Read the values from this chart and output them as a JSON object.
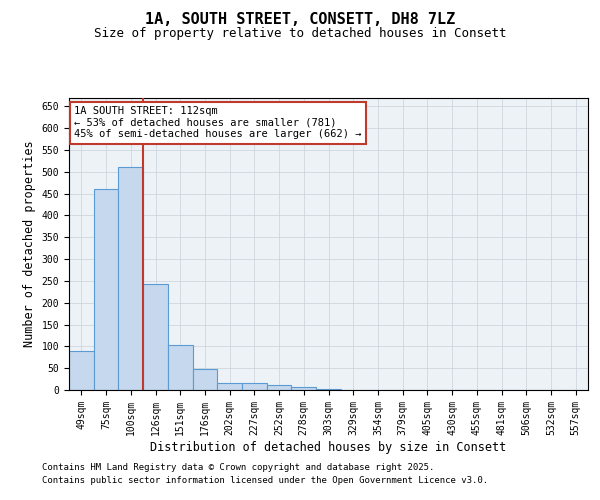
{
  "title_line1": "1A, SOUTH STREET, CONSETT, DH8 7LZ",
  "title_line2": "Size of property relative to detached houses in Consett",
  "xlabel": "Distribution of detached houses by size in Consett",
  "ylabel": "Number of detached properties",
  "categories": [
    "49sqm",
    "75sqm",
    "100sqm",
    "126sqm",
    "151sqm",
    "176sqm",
    "202sqm",
    "227sqm",
    "252sqm",
    "278sqm",
    "303sqm",
    "329sqm",
    "354sqm",
    "379sqm",
    "405sqm",
    "430sqm",
    "455sqm",
    "481sqm",
    "506sqm",
    "532sqm",
    "557sqm"
  ],
  "values": [
    90,
    460,
    510,
    243,
    103,
    47,
    17,
    17,
    11,
    7,
    2,
    1,
    0,
    0,
    0,
    0,
    0,
    0,
    0,
    0,
    0
  ],
  "bar_color": "#c5d8ed",
  "bar_edgecolor": "#5b9bd5",
  "bar_linewidth": 0.8,
  "vline_x": 2.5,
  "vline_color": "#c0392b",
  "vline_linewidth": 1.5,
  "annotation_text": "1A SOUTH STREET: 112sqm\n← 53% of detached houses are smaller (781)\n45% of semi-detached houses are larger (662) →",
  "annotation_box_color": "#c0392b",
  "annotation_text_color": "#000000",
  "ylim": [
    0,
    670
  ],
  "yticks": [
    0,
    50,
    100,
    150,
    200,
    250,
    300,
    350,
    400,
    450,
    500,
    550,
    600,
    650
  ],
  "grid_color": "#c8d0d8",
  "background_color": "#edf2f7",
  "footer_line1": "Contains HM Land Registry data © Crown copyright and database right 2025.",
  "footer_line2": "Contains public sector information licensed under the Open Government Licence v3.0.",
  "title_fontsize": 11,
  "subtitle_fontsize": 9,
  "tick_fontsize": 7,
  "label_fontsize": 8.5,
  "footer_fontsize": 6.5,
  "ann_fontsize": 7.5
}
